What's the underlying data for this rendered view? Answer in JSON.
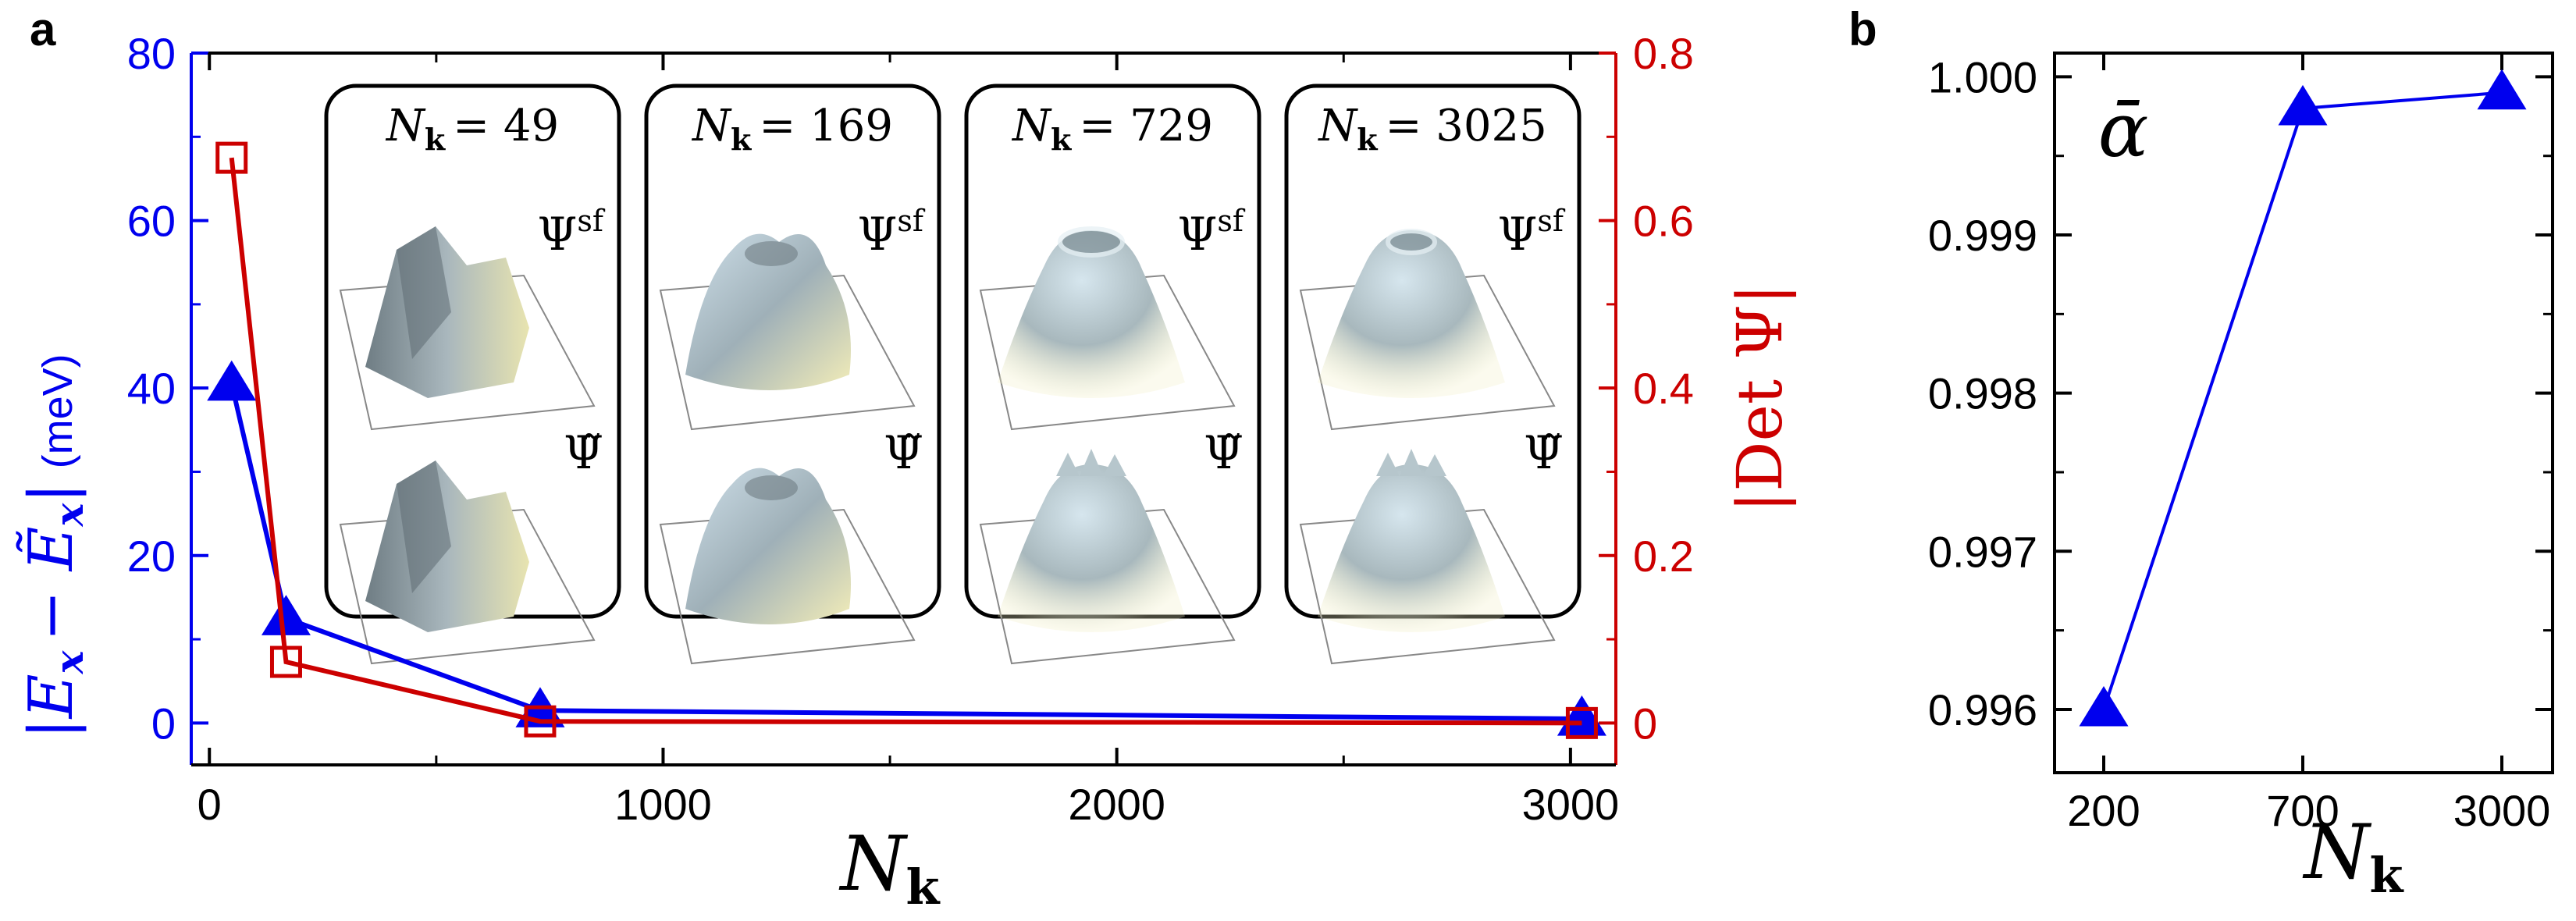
{
  "panels": {
    "a": "a",
    "b": "b"
  },
  "colors": {
    "blue": "#0000ee",
    "red": "#cc0000",
    "axis": "#000000"
  },
  "chart_data": [
    {
      "panel": "a",
      "type": "line",
      "xlabel": "N",
      "xlabel_sub": "k",
      "x_ticks": [
        "0",
        "1000",
        "2000",
        "3000"
      ],
      "xlim": [
        -40,
        3100
      ],
      "y_left": {
        "label_math": "|E",
        "label_sub": "x",
        "label_tail": "− Ẽ",
        "label_tail_sub": "x",
        "label_end": "|",
        "unit": "(meV)",
        "ticks": [
          "0",
          "20",
          "40",
          "60",
          "80"
        ],
        "ylim": [
          -5,
          80
        ],
        "color": "#0000ee"
      },
      "y_right": {
        "label": "|Det Ψ|",
        "ticks": [
          "0",
          "0.2",
          "0.4",
          "0.6",
          "0.8"
        ],
        "ylim": [
          -0.05,
          0.8
        ],
        "color": "#cc0000"
      },
      "series": [
        {
          "axis": "left",
          "marker": "triangle",
          "color": "#0000ee",
          "x": [
            49,
            169,
            729,
            3025
          ],
          "y": [
            40.5,
            12.5,
            1.5,
            0.5
          ]
        },
        {
          "axis": "right",
          "marker": "square",
          "color": "#cc0000",
          "x": [
            49,
            169,
            729,
            3025
          ],
          "y": [
            0.675,
            0.073,
            0.002,
            0.0
          ]
        }
      ],
      "insets": [
        {
          "label": "N",
          "sub": "k",
          "value": "= 49",
          "top_label": "Ψ",
          "top_sup": "sf",
          "bottom_label": "Ψ̃",
          "shape": "rough"
        },
        {
          "label": "N",
          "sub": "k",
          "value": "= 169",
          "top_label": "Ψ",
          "top_sup": "sf",
          "bottom_label": "Ψ̃",
          "shape": "bumpy"
        },
        {
          "label": "N",
          "sub": "k",
          "value": "= 729",
          "top_label": "Ψ",
          "top_sup": "sf",
          "bottom_label": "Ψ̃",
          "shape": "smooth"
        },
        {
          "label": "N",
          "sub": "k",
          "value": "= 3025",
          "top_label": "Ψ",
          "top_sup": "sf",
          "bottom_label": "Ψ̃",
          "shape": "smoothest"
        }
      ]
    },
    {
      "panel": "b",
      "type": "line",
      "annotation": "ᾱ",
      "xlabel": "N",
      "xlabel_sub": "k",
      "x_categories": [
        "200",
        "700",
        "3000"
      ],
      "y_ticks": [
        "0.996",
        "0.997",
        "0.998",
        "0.999",
        "1.000"
      ],
      "ylim": [
        0.9956,
        1.00015
      ],
      "series": [
        {
          "marker": "triangle",
          "color": "#0000ee",
          "values": [
            0.996,
            0.9998,
            0.9999
          ]
        }
      ]
    }
  ]
}
